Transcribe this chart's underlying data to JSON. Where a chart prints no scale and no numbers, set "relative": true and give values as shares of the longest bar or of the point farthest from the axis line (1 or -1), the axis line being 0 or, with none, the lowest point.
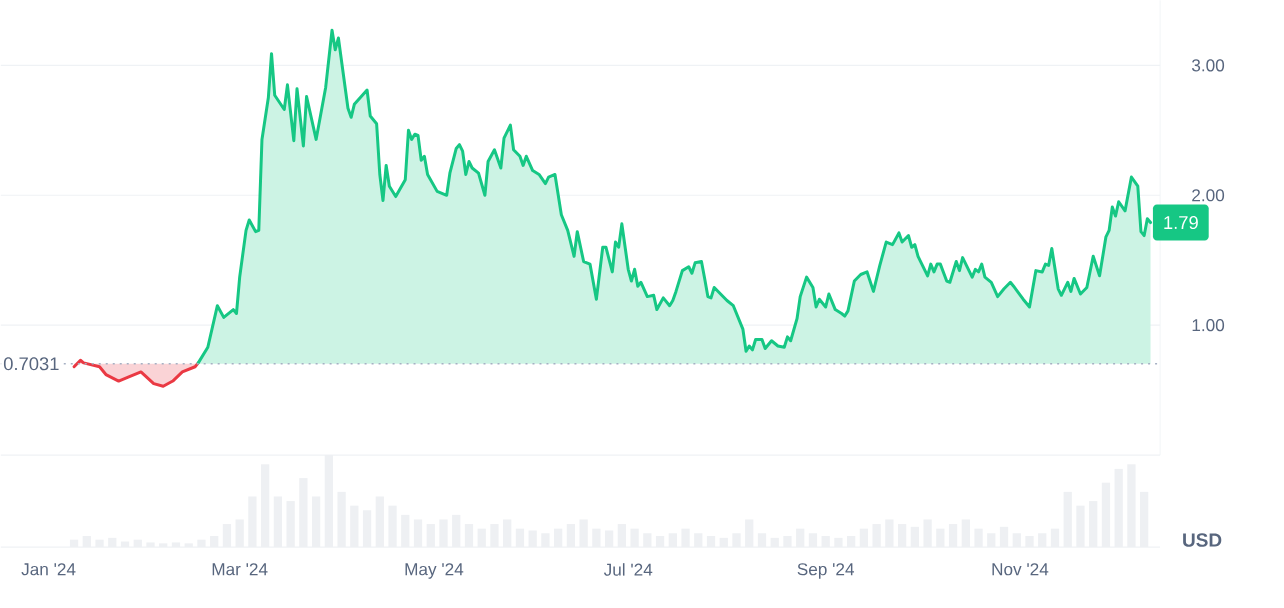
{
  "chart_data": [
    {
      "type": "area",
      "xlim": [
        "2023-12-17",
        "2024-12-15"
      ],
      "ylim": [
        0,
        3.5
      ],
      "yticks": [
        {
          "value": 0,
          "label": null
        },
        {
          "value": 1,
          "label": "1.00"
        },
        {
          "value": 2,
          "label": "2.00"
        },
        {
          "value": 3,
          "label": "3.00"
        }
      ],
      "grid": "y",
      "tick_labels": "y",
      "ref_lines": [
        {
          "axis": "y",
          "value": 0.7031,
          "label": "0.7031",
          "color": "#a6b0c3",
          "line_style": "dotted"
        }
      ],
      "annotations": [
        {
          "text": "1.79",
          "x": "2024-12-12",
          "y": 1.79
        }
      ],
      "series": [
        {
          "color": "#ea3943",
          "x": [
            "2024-01-09",
            "2024-01-11",
            "2024-01-12",
            "2024-01-17",
            "2024-01-19",
            "2024-01-23",
            "2024-01-26",
            "2024-01-30",
            "2024-02-03",
            "2024-02-06",
            "2024-02-09",
            "2024-02-12",
            "2024-02-16",
            "2024-02-17"
          ],
          "values": [
            0.68,
            0.73,
            0.71,
            0.68,
            0.62,
            0.57,
            0.6,
            0.64,
            0.55,
            0.53,
            0.57,
            0.64,
            0.68,
            0.71
          ]
        },
        {
          "color": "#16c784",
          "x": [
            "2024-02-17",
            "2024-02-20",
            "2024-02-23",
            "2024-02-25",
            "2024-02-28",
            "2024-02-29",
            "2024-03-01",
            "2024-03-03",
            "2024-03-04",
            "2024-03-06",
            "2024-03-07",
            "2024-03-08",
            "2024-03-10",
            "2024-03-11",
            "2024-03-12",
            "2024-03-15",
            "2024-03-16",
            "2024-03-18",
            "2024-03-19",
            "2024-03-21",
            "2024-03-22",
            "2024-03-25",
            "2024-03-28",
            "2024-03-30",
            "2024-03-31",
            "2024-04-01",
            "2024-04-04",
            "2024-04-05",
            "2024-04-06",
            "2024-04-10",
            "2024-04-11",
            "2024-04-13",
            "2024-04-14",
            "2024-04-15",
            "2024-04-16",
            "2024-04-17",
            "2024-04-19",
            "2024-04-22",
            "2024-04-23",
            "2024-04-24",
            "2024-04-25",
            "2024-04-26",
            "2024-04-27",
            "2024-04-28",
            "2024-04-29",
            "2024-05-02",
            "2024-05-05",
            "2024-05-06",
            "2024-05-08",
            "2024-05-09",
            "2024-05-10",
            "2024-05-11",
            "2024-05-12",
            "2024-05-13",
            "2024-05-15",
            "2024-05-17",
            "2024-05-18",
            "2024-05-20",
            "2024-05-22",
            "2024-05-23",
            "2024-05-25",
            "2024-05-26",
            "2024-05-28",
            "2024-05-29",
            "2024-05-30",
            "2024-06-01",
            "2024-06-03",
            "2024-06-05",
            "2024-06-06",
            "2024-06-08",
            "2024-06-10",
            "2024-06-12",
            "2024-06-14",
            "2024-06-15",
            "2024-06-17",
            "2024-06-19",
            "2024-06-21",
            "2024-06-23",
            "2024-06-24",
            "2024-06-26",
            "2024-06-27",
            "2024-06-28",
            "2024-06-29",
            "2024-07-01",
            "2024-07-02",
            "2024-07-03",
            "2024-07-04",
            "2024-07-05",
            "2024-07-07",
            "2024-07-09",
            "2024-07-10",
            "2024-07-12",
            "2024-07-14",
            "2024-07-15",
            "2024-07-16",
            "2024-07-18",
            "2024-07-20",
            "2024-07-21",
            "2024-07-22",
            "2024-07-24",
            "2024-07-25",
            "2024-07-26",
            "2024-07-27",
            "2024-07-28",
            "2024-08-01",
            "2024-08-03",
            "2024-08-06",
            "2024-08-07",
            "2024-08-08",
            "2024-08-09",
            "2024-08-10",
            "2024-08-12",
            "2024-08-13",
            "2024-08-15",
            "2024-08-17",
            "2024-08-19",
            "2024-08-20",
            "2024-08-21",
            "2024-08-23",
            "2024-08-24",
            "2024-08-26",
            "2024-08-28",
            "2024-08-29",
            "2024-08-30",
            "2024-09-01",
            "2024-09-02",
            "2024-09-04",
            "2024-09-06",
            "2024-09-07",
            "2024-09-08",
            "2024-09-10",
            "2024-09-12",
            "2024-09-14",
            "2024-09-16",
            "2024-09-18",
            "2024-09-20",
            "2024-09-22",
            "2024-09-24",
            "2024-09-25",
            "2024-09-27",
            "2024-09-28",
            "2024-09-29",
            "2024-09-30",
            "2024-10-03",
            "2024-10-04",
            "2024-10-05",
            "2024-10-06",
            "2024-10-07",
            "2024-10-09",
            "2024-10-10",
            "2024-10-12",
            "2024-10-13",
            "2024-10-14",
            "2024-10-17",
            "2024-10-18",
            "2024-10-19",
            "2024-10-20",
            "2024-10-21",
            "2024-10-23",
            "2024-10-25",
            "2024-10-27",
            "2024-10-29",
            "2024-10-30",
            "2024-11-02",
            "2024-11-04",
            "2024-11-06",
            "2024-11-08",
            "2024-11-09",
            "2024-11-10",
            "2024-11-11",
            "2024-11-13",
            "2024-11-14",
            "2024-11-16",
            "2024-11-17",
            "2024-11-18",
            "2024-11-20",
            "2024-11-22",
            "2024-11-24",
            "2024-11-26",
            "2024-11-28",
            "2024-11-29",
            "2024-11-30",
            "2024-12-01",
            "2024-12-02",
            "2024-12-04",
            "2024-12-06",
            "2024-12-08",
            "2024-12-09",
            "2024-12-10",
            "2024-12-11",
            "2024-12-12"
          ],
          "values": [
            0.71,
            0.83,
            1.15,
            1.06,
            1.12,
            1.09,
            1.37,
            1.73,
            1.81,
            1.72,
            1.73,
            2.43,
            2.75,
            3.09,
            2.77,
            2.66,
            2.85,
            2.42,
            2.82,
            2.38,
            2.76,
            2.43,
            2.83,
            3.27,
            3.12,
            3.21,
            2.67,
            2.6,
            2.7,
            2.81,
            2.61,
            2.55,
            2.16,
            1.96,
            2.23,
            2.07,
            1.99,
            2.12,
            2.5,
            2.43,
            2.47,
            2.46,
            2.27,
            2.3,
            2.16,
            2.03,
            2.0,
            2.17,
            2.36,
            2.39,
            2.34,
            2.16,
            2.26,
            2.21,
            2.17,
            2.0,
            2.26,
            2.35,
            2.21,
            2.44,
            2.54,
            2.35,
            2.3,
            2.23,
            2.3,
            2.19,
            2.16,
            2.09,
            2.14,
            2.16,
            1.85,
            1.73,
            1.53,
            1.72,
            1.49,
            1.47,
            1.2,
            1.6,
            1.6,
            1.41,
            1.64,
            1.6,
            1.78,
            1.43,
            1.34,
            1.43,
            1.3,
            1.33,
            1.22,
            1.23,
            1.12,
            1.21,
            1.15,
            1.19,
            1.26,
            1.42,
            1.45,
            1.4,
            1.48,
            1.49,
            1.36,
            1.22,
            1.21,
            1.29,
            1.19,
            1.15,
            0.97,
            0.8,
            0.84,
            0.81,
            0.89,
            0.89,
            0.82,
            0.88,
            0.84,
            0.83,
            0.91,
            0.88,
            1.05,
            1.22,
            1.37,
            1.29,
            1.14,
            1.2,
            1.14,
            1.24,
            1.12,
            1.09,
            1.07,
            1.11,
            1.34,
            1.39,
            1.41,
            1.26,
            1.46,
            1.64,
            1.62,
            1.71,
            1.64,
            1.69,
            1.6,
            1.62,
            1.53,
            1.38,
            1.47,
            1.41,
            1.47,
            1.47,
            1.34,
            1.33,
            1.49,
            1.42,
            1.52,
            1.37,
            1.43,
            1.41,
            1.47,
            1.37,
            1.33,
            1.22,
            1.28,
            1.33,
            1.3,
            1.2,
            1.14,
            1.42,
            1.41,
            1.47,
            1.46,
            1.59,
            1.28,
            1.23,
            1.33,
            1.26,
            1.36,
            1.24,
            1.29,
            1.53,
            1.38,
            1.68,
            1.73,
            1.91,
            1.84,
            1.95,
            1.88,
            2.14,
            2.07,
            1.72,
            1.69,
            1.82,
            1.79
          ]
        }
      ]
    },
    {
      "type": "bar",
      "relative": true,
      "color": "#eef0f3",
      "xlim": [
        "2023-12-17",
        "2024-12-15"
      ],
      "tick_labels": "x",
      "xticks": [
        {
          "value": "2024-01-01",
          "label": "Jan '24"
        },
        {
          "value": "2024-03-01",
          "label": "Mar '24"
        },
        {
          "value": "2024-05-01",
          "label": "May '24"
        },
        {
          "value": "2024-07-01",
          "label": "Jul '24"
        },
        {
          "value": "2024-09-01",
          "label": "Sep '24"
        },
        {
          "value": "2024-11-01",
          "label": "Nov '24"
        }
      ],
      "annotations": [
        "USD"
      ],
      "x": [
        "2024-01-09",
        "2024-01-13",
        "2024-01-17",
        "2024-01-21",
        "2024-01-25",
        "2024-01-29",
        "2024-02-02",
        "2024-02-06",
        "2024-02-10",
        "2024-02-14",
        "2024-02-18",
        "2024-02-22",
        "2024-02-26",
        "2024-03-01",
        "2024-03-05",
        "2024-03-09",
        "2024-03-13",
        "2024-03-17",
        "2024-03-21",
        "2024-03-25",
        "2024-03-29",
        "2024-04-02",
        "2024-04-06",
        "2024-04-10",
        "2024-04-14",
        "2024-04-18",
        "2024-04-22",
        "2024-04-26",
        "2024-04-30",
        "2024-05-04",
        "2024-05-08",
        "2024-05-12",
        "2024-05-16",
        "2024-05-20",
        "2024-05-24",
        "2024-05-28",
        "2024-06-01",
        "2024-06-05",
        "2024-06-09",
        "2024-06-13",
        "2024-06-17",
        "2024-06-21",
        "2024-06-25",
        "2024-06-29",
        "2024-07-03",
        "2024-07-07",
        "2024-07-11",
        "2024-07-15",
        "2024-07-19",
        "2024-07-23",
        "2024-07-27",
        "2024-07-31",
        "2024-08-04",
        "2024-08-08",
        "2024-08-12",
        "2024-08-16",
        "2024-08-20",
        "2024-08-24",
        "2024-08-28",
        "2024-09-01",
        "2024-09-05",
        "2024-09-09",
        "2024-09-13",
        "2024-09-17",
        "2024-09-21",
        "2024-09-25",
        "2024-09-29",
        "2024-10-03",
        "2024-10-07",
        "2024-10-11",
        "2024-10-15",
        "2024-10-19",
        "2024-10-23",
        "2024-10-27",
        "2024-10-31",
        "2024-11-04",
        "2024-11-08",
        "2024-11-12",
        "2024-11-16",
        "2024-11-20",
        "2024-11-24",
        "2024-11-28",
        "2024-12-02",
        "2024-12-06",
        "2024-12-10"
      ],
      "values": [
        0.08,
        0.12,
        0.08,
        0.1,
        0.06,
        0.08,
        0.05,
        0.04,
        0.05,
        0.04,
        0.08,
        0.12,
        0.25,
        0.3,
        0.55,
        0.9,
        0.55,
        0.5,
        0.75,
        0.55,
        1.0,
        0.6,
        0.45,
        0.4,
        0.55,
        0.45,
        0.35,
        0.3,
        0.25,
        0.3,
        0.35,
        0.25,
        0.2,
        0.25,
        0.3,
        0.2,
        0.18,
        0.15,
        0.2,
        0.25,
        0.3,
        0.2,
        0.18,
        0.25,
        0.2,
        0.15,
        0.12,
        0.15,
        0.2,
        0.15,
        0.12,
        0.1,
        0.15,
        0.3,
        0.15,
        0.1,
        0.12,
        0.2,
        0.15,
        0.12,
        0.1,
        0.12,
        0.2,
        0.25,
        0.3,
        0.25,
        0.22,
        0.3,
        0.2,
        0.25,
        0.3,
        0.2,
        0.15,
        0.22,
        0.15,
        0.12,
        0.15,
        0.2,
        0.6,
        0.45,
        0.5,
        0.7,
        0.85,
        0.9,
        0.6
      ]
    }
  ]
}
